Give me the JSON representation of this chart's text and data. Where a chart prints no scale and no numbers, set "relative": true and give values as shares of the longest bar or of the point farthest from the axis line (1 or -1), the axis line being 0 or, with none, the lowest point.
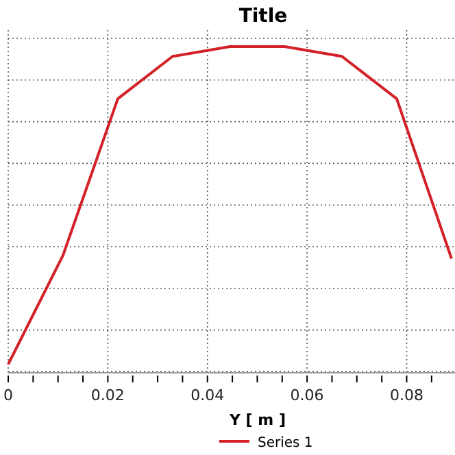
{
  "chart_data": {
    "type": "line",
    "title": "Title",
    "xlabel": "Y [ m ]",
    "relative": true,
    "x": [
      0,
      0.011,
      0.022,
      0.033,
      0.0445,
      0.0555,
      0.067,
      0.078,
      0.089
    ],
    "xlim": [
      0,
      0.0897
    ],
    "xticks": [
      0,
      {
        "value": 0.005,
        "label": null
      },
      {
        "value": 0.01,
        "label": null
      },
      {
        "value": 0.015,
        "label": null
      },
      0.02,
      {
        "value": 0.025,
        "label": null
      },
      {
        "value": 0.03,
        "label": null
      },
      {
        "value": 0.035,
        "label": null
      },
      0.04,
      {
        "value": 0.045,
        "label": null
      },
      {
        "value": 0.05,
        "label": null
      },
      {
        "value": 0.055,
        "label": null
      },
      0.06,
      {
        "value": 0.065,
        "label": null
      },
      {
        "value": 0.07,
        "label": null
      },
      {
        "value": 0.075,
        "label": null
      },
      0.08,
      {
        "value": 0.085,
        "label": null
      }
    ],
    "series": [
      {
        "name": "Series 1",
        "color": "#d42027",
        "values": [
          0.026,
          0.36,
          0.84,
          0.97,
          1,
          1,
          0.97,
          0.84,
          0.35
        ]
      }
    ],
    "grid": true,
    "legend": "bottom",
    "line_style": "solid",
    "marker": "none",
    "tick_labels": "x"
  }
}
